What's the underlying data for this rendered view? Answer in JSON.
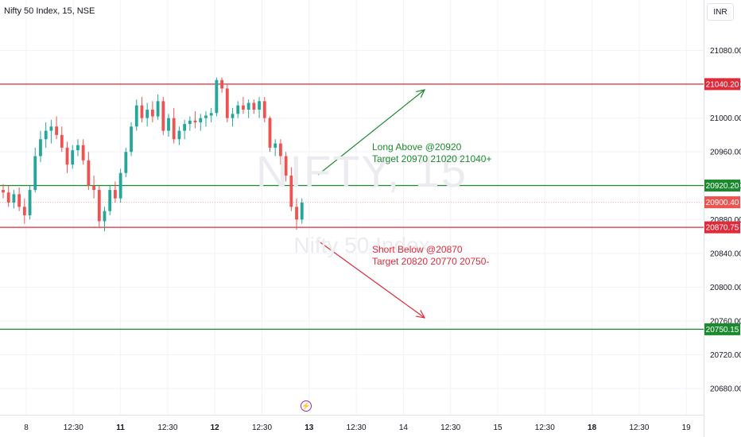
{
  "header": {
    "title": "Nifty 50 Index, 15, NSE"
  },
  "currency": "INR",
  "watermark": {
    "symbol": "NIFTY, 15",
    "name": "Nifty 50 Index"
  },
  "annotations": {
    "long": [
      "Long Above @20920",
      "Target 20970 21020 21040+"
    ],
    "short": [
      "Short Below @20870",
      "Target 20820 20770 20750-"
    ]
  },
  "event_marker": {
    "icon": "lightning-bolt-icon"
  },
  "colors": {
    "up": "#26a69a",
    "down": "#ef5350",
    "green_line": "#1b8a2e",
    "red_line": "#e02a3a",
    "grid": "#f0f3fa"
  },
  "chart_data": {
    "type": "candlestick",
    "title": "Nifty 50 Index, 15, NSE",
    "ylim": [
      20640,
      21120
    ],
    "y_ticks": [
      21080.0,
      21040.0,
      21000.0,
      20960.0,
      20920.0,
      20880.0,
      20840.0,
      20800.0,
      20760.0,
      20720.0,
      20680.0
    ],
    "x_tick_labels": [
      "8",
      "12:30",
      "11",
      "12:30",
      "12",
      "12:30",
      "13",
      "12:30",
      "14",
      "12:30",
      "15",
      "12:30",
      "18",
      "12:30",
      "19"
    ],
    "bold_x_ticks": [
      "11",
      "12",
      "13",
      "18"
    ],
    "horizontal_levels": [
      {
        "price": 21040.2,
        "label": "21040.20",
        "color": "#e02a3a"
      },
      {
        "price": 20920.2,
        "label": "20920.20",
        "color": "#1b8a2e"
      },
      {
        "price": 20870.75,
        "label": "20870.75",
        "color": "#e02a3a"
      },
      {
        "price": 20750.15,
        "label": "20750.15",
        "color": "#1b8a2e"
      }
    ],
    "last_price": {
      "price": 20900.4,
      "label": "20900.40"
    },
    "candles": [
      [
        20915,
        20922,
        20905,
        20912
      ],
      [
        20912,
        20920,
        20895,
        20900
      ],
      [
        20900,
        20915,
        20893,
        20910
      ],
      [
        20910,
        20918,
        20890,
        20895
      ],
      [
        20895,
        20905,
        20875,
        20885
      ],
      [
        20885,
        20920,
        20880,
        20915
      ],
      [
        20915,
        20965,
        20912,
        20955
      ],
      [
        20955,
        20985,
        20948,
        20975
      ],
      [
        20975,
        20995,
        20965,
        20985
      ],
      [
        20985,
        20998,
        20970,
        20990
      ],
      [
        20990,
        21002,
        20975,
        20980
      ],
      [
        20980,
        20990,
        20960,
        20965
      ],
      [
        20965,
        20972,
        20935,
        20945
      ],
      [
        20945,
        20968,
        20940,
        20962
      ],
      [
        20962,
        20975,
        20955,
        20968
      ],
      [
        20968,
        20975,
        20945,
        20950
      ],
      [
        20950,
        20960,
        20915,
        20920
      ],
      [
        20920,
        20932,
        20905,
        20915
      ],
      [
        20915,
        20920,
        20870,
        20878
      ],
      [
        20878,
        20895,
        20866,
        20890
      ],
      [
        20890,
        20920,
        20885,
        20915
      ],
      [
        20915,
        20925,
        20900,
        20905
      ],
      [
        20905,
        20940,
        20900,
        20935
      ],
      [
        20935,
        20965,
        20930,
        20960
      ],
      [
        20960,
        20995,
        20955,
        20990
      ],
      [
        20990,
        21022,
        20985,
        21015
      ],
      [
        21015,
        21025,
        20995,
        21000
      ],
      [
        21000,
        21018,
        20990,
        21010
      ],
      [
        21010,
        21020,
        20995,
        21002
      ],
      [
        21002,
        21028,
        20998,
        21020
      ],
      [
        21020,
        21025,
        20980,
        20985
      ],
      [
        20985,
        21005,
        20978,
        21000
      ],
      [
        21000,
        21012,
        20970,
        20975
      ],
      [
        20975,
        20990,
        20968,
        20985
      ],
      [
        20985,
        20998,
        20975,
        20993
      ],
      [
        20993,
        21002,
        20985,
        20997
      ],
      [
        20997,
        21008,
        20988,
        20995
      ],
      [
        20995,
        21005,
        20985,
        21000
      ],
      [
        21000,
        21008,
        20990,
        21003
      ],
      [
        21003,
        21012,
        20995,
        21006
      ],
      [
        21006,
        21048,
        21002,
        21045
      ],
      [
        21045,
        21048,
        21030,
        21035
      ],
      [
        21035,
        21040,
        20995,
        21000
      ],
      [
        21000,
        21012,
        20990,
        21005
      ],
      [
        21005,
        21020,
        21000,
        21015
      ],
      [
        21015,
        21025,
        21005,
        21010
      ],
      [
        21010,
        21022,
        21000,
        21018
      ],
      [
        21018,
        21022,
        21005,
        21010
      ],
      [
        21010,
        21025,
        21000,
        21020
      ],
      [
        21020,
        21025,
        20995,
        21000
      ],
      [
        21000,
        21002,
        20960,
        20965
      ],
      [
        20965,
        20975,
        20955,
        20970
      ],
      [
        20970,
        20975,
        20945,
        20955
      ],
      [
        20955,
        20960,
        20925,
        20932
      ],
      [
        20932,
        20942,
        20890,
        20895
      ],
      [
        20895,
        20905,
        20868,
        20880
      ],
      [
        20880,
        20905,
        20875,
        20900
      ]
    ]
  }
}
